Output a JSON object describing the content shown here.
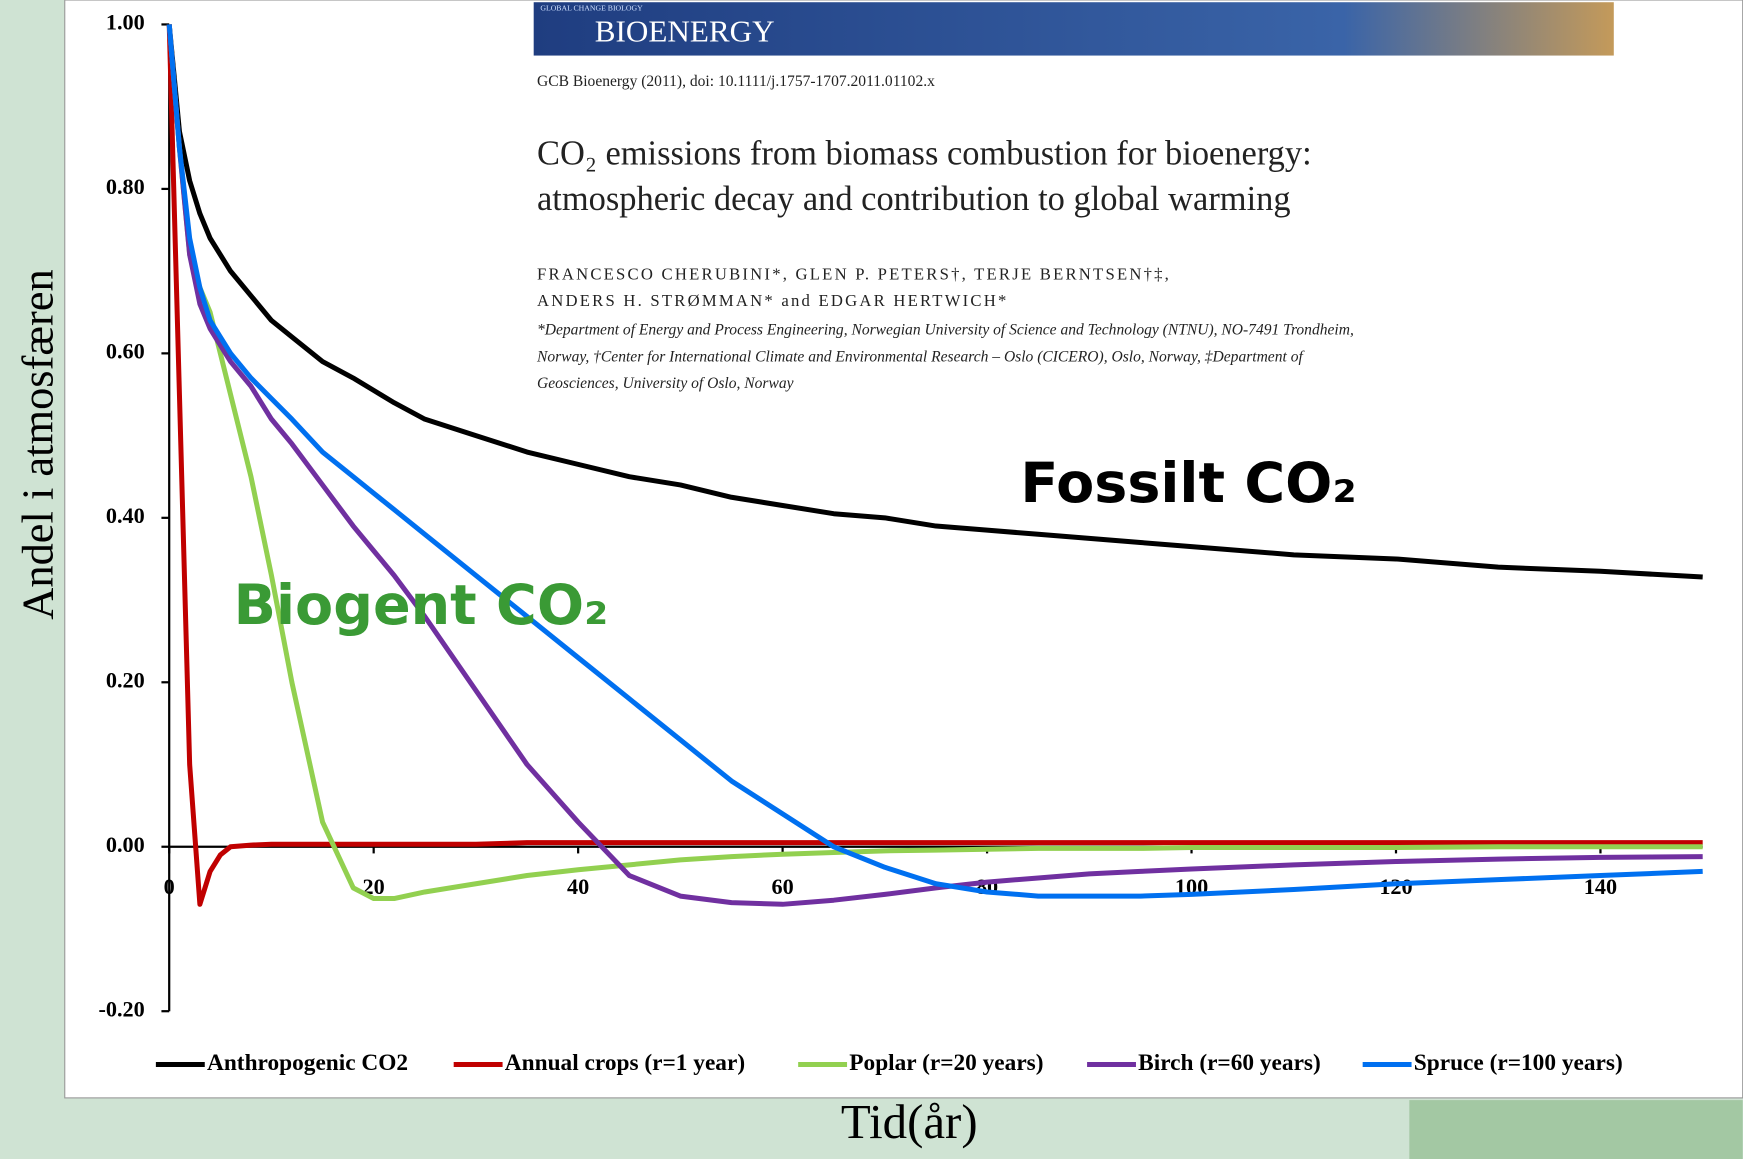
{
  "chart_data": {
    "type": "line",
    "xlabel": "Tid(år)",
    "ylabel": "Andel i atmosfæren",
    "xlim": [
      0,
      150
    ],
    "ylim": [
      -0.2,
      1.0
    ],
    "xticks": [
      0,
      20,
      40,
      60,
      80,
      100,
      120,
      140
    ],
    "yticks": [
      {
        "value": 1.0,
        "label": "1.00"
      },
      {
        "value": 0.8,
        "label": "0.80"
      },
      {
        "value": 0.6,
        "label": "0.60"
      },
      {
        "value": 0.4,
        "label": "0.40"
      },
      {
        "value": 0.2,
        "label": "0.20"
      },
      {
        "value": 0.0,
        "label": "0.00"
      },
      {
        "value": -0.2,
        "label": "-0.20"
      }
    ],
    "annotations": [
      {
        "text": "Fossilt CO₂",
        "color": "#000000"
      },
      {
        "text": "Biogent CO₂",
        "color": "#3a9a35"
      }
    ],
    "x": [
      0,
      1,
      2,
      3,
      4,
      5,
      6,
      8,
      10,
      12,
      15,
      18,
      20,
      22,
      25,
      30,
      35,
      40,
      45,
      50,
      55,
      60,
      65,
      70,
      75,
      80,
      85,
      90,
      95,
      100,
      110,
      120,
      130,
      140,
      150
    ],
    "series": [
      {
        "name": "Anthropogenic CO2",
        "color": "#000000",
        "values": [
          1.0,
          0.87,
          0.81,
          0.77,
          0.74,
          0.72,
          0.7,
          0.67,
          0.64,
          0.62,
          0.59,
          0.57,
          0.555,
          0.54,
          0.52,
          0.5,
          0.48,
          0.465,
          0.45,
          0.44,
          0.425,
          0.415,
          0.405,
          0.4,
          0.39,
          0.385,
          0.38,
          0.375,
          0.37,
          0.365,
          0.355,
          0.35,
          0.34,
          0.335,
          0.328
        ]
      },
      {
        "name": "Annual crops (r=1 year)",
        "color": "#c00000",
        "values": [
          1.0,
          0.55,
          0.1,
          -0.07,
          -0.03,
          -0.01,
          0.0,
          0.002,
          0.003,
          0.003,
          0.003,
          0.003,
          0.003,
          0.003,
          0.003,
          0.003,
          0.005,
          0.005,
          0.005,
          0.005,
          0.005,
          0.005,
          0.005,
          0.005,
          0.005,
          0.005,
          0.005,
          0.005,
          0.005,
          0.005,
          0.005,
          0.005,
          0.005,
          0.005,
          0.005
        ]
      },
      {
        "name": "Poplar (r=20 years)",
        "color": "#92d050",
        "values": [
          1.0,
          0.85,
          0.72,
          0.68,
          0.65,
          0.6,
          0.55,
          0.45,
          0.33,
          0.2,
          0.03,
          -0.05,
          -0.063,
          -0.063,
          -0.055,
          -0.045,
          -0.035,
          -0.028,
          -0.022,
          -0.016,
          -0.012,
          -0.009,
          -0.007,
          -0.005,
          -0.004,
          -0.003,
          -0.002,
          -0.002,
          -0.002,
          -0.001,
          -0.001,
          -0.001,
          0.0,
          0.0,
          0.0
        ]
      },
      {
        "name": "Birch (r=60 years)",
        "color": "#7030a0",
        "values": [
          1.0,
          0.85,
          0.72,
          0.66,
          0.63,
          0.61,
          0.59,
          0.56,
          0.52,
          0.49,
          0.44,
          0.39,
          0.36,
          0.33,
          0.28,
          0.19,
          0.1,
          0.03,
          -0.035,
          -0.06,
          -0.068,
          -0.07,
          -0.065,
          -0.058,
          -0.05,
          -0.043,
          -0.038,
          -0.033,
          -0.03,
          -0.027,
          -0.022,
          -0.018,
          -0.015,
          -0.013,
          -0.012
        ]
      },
      {
        "name": "Spruce (r=100 years)",
        "color": "#0070f0",
        "values": [
          1.0,
          0.85,
          0.74,
          0.68,
          0.64,
          0.62,
          0.6,
          0.57,
          0.545,
          0.52,
          0.48,
          0.45,
          0.43,
          0.41,
          0.38,
          0.33,
          0.28,
          0.23,
          0.18,
          0.13,
          0.08,
          0.04,
          0.0,
          -0.025,
          -0.045,
          -0.055,
          -0.06,
          -0.06,
          -0.06,
          -0.058,
          -0.052,
          -0.045,
          -0.04,
          -0.035,
          -0.03
        ]
      }
    ]
  },
  "inset": {
    "journal_small": "GLOBAL CHANGE BIOLOGY",
    "journal": "BIOENERGY",
    "citation": "GCB Bioenergy (2011), doi: 10.1111/j.1757-1707.2011.01102.x",
    "title_lines": [
      "CO₂ emissions from biomass combustion for bioenergy:",
      "atmospheric decay and contribution to global warming"
    ],
    "author_lines": [
      "FRANCESCO CHERUBINI*, GLEN P. PETERS†, TERJE BERNTSEN†‡,",
      "ANDERS H. STRØMMAN* and EDGAR HERTWICH*"
    ],
    "affiliation_lines": [
      "*Department of Energy and Process Engineering, Norwegian University of Science and Technology (NTNU), NO-7491 Trondheim,",
      "Norway, †Center for International Climate and Environmental Research – Oslo (CICERO), Oslo, Norway, ‡Department of",
      "Geosciences, University of Oslo, Norway"
    ]
  }
}
